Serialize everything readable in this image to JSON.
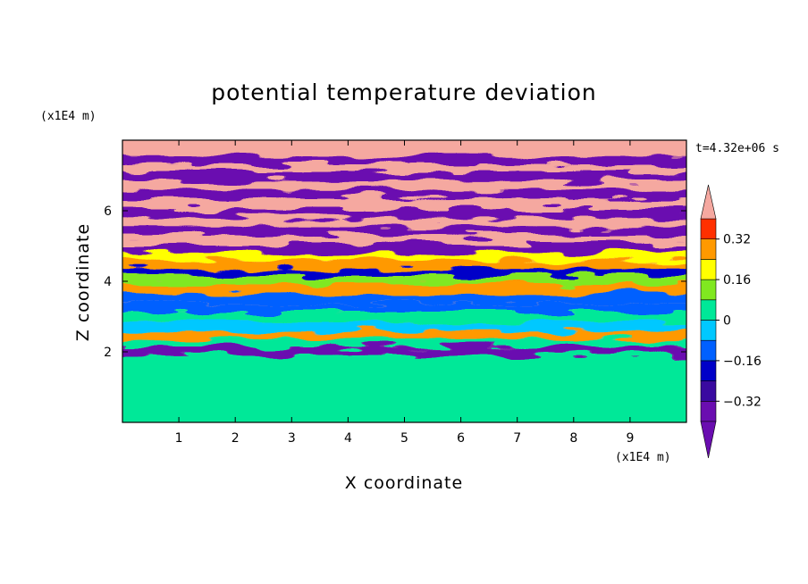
{
  "chart_data": {
    "type": "heatmap",
    "title": "potential temperature deviation",
    "xlabel": "X coordinate",
    "ylabel": "Z coordinate",
    "x_unit": "(x1E4 m)",
    "y_unit": "(x1E4 m)",
    "time_label": "t=4.32e+06 s",
    "xlim": [
      0,
      10
    ],
    "ylim": [
      0,
      8
    ],
    "x_ticks": [
      "1",
      "2",
      "3",
      "4",
      "5",
      "6",
      "7",
      "8",
      "9"
    ],
    "y_ticks": [
      "2",
      "4",
      "6"
    ],
    "colorbar": {
      "levels": [
        -0.4,
        -0.32,
        -0.24,
        -0.16,
        -0.08,
        0,
        0.08,
        0.16,
        0.24,
        0.32,
        0.4
      ],
      "labels": [
        "0.32",
        "0.16",
        "0",
        "−0.16",
        "−0.32"
      ],
      "label_values": [
        0.32,
        0.16,
        0,
        -0.16,
        -0.32
      ],
      "colors": [
        "#6a0db0",
        "#3a0aa0",
        "#0000c8",
        "#0060ff",
        "#00c8ff",
        "#00e898",
        "#80e820",
        "#ffff00",
        "#ff9900",
        "#ff3000",
        "#f5a8a0"
      ],
      "extend": "both"
    },
    "bands": [
      {
        "z": 7.75,
        "value": 0.45
      },
      {
        "z": 7.55,
        "value": -0.45
      },
      {
        "z": 7.3,
        "value": 0.45
      },
      {
        "z": 7.1,
        "value": -0.45
      },
      {
        "z": 6.85,
        "value": 0.45
      },
      {
        "z": 6.6,
        "value": -0.45
      },
      {
        "z": 6.35,
        "value": 0.45
      },
      {
        "z": 6.05,
        "value": -0.45
      },
      {
        "z": 5.8,
        "value": 0.45
      },
      {
        "z": 5.55,
        "value": -0.45
      },
      {
        "z": 5.3,
        "value": 0.45
      },
      {
        "z": 5.05,
        "value": -0.45
      },
      {
        "z": 4.8,
        "value": 0.2
      },
      {
        "z": 4.6,
        "value": 0.3
      },
      {
        "z": 4.35,
        "value": -0.2
      },
      {
        "z": 4.15,
        "value": 0.1
      },
      {
        "z": 3.9,
        "value": 0.25
      },
      {
        "z": 3.65,
        "value": -0.1
      },
      {
        "z": 3.35,
        "value": -0.1
      },
      {
        "z": 3.1,
        "value": 0.05
      },
      {
        "z": 2.85,
        "value": -0.05
      },
      {
        "z": 2.6,
        "value": 0.3
      },
      {
        "z": 2.35,
        "value": 0.05
      },
      {
        "z": 2.15,
        "value": -0.35
      },
      {
        "z": 1.9,
        "value": 0.05
      },
      {
        "z": 1.0,
        "value": 0.04
      }
    ]
  }
}
